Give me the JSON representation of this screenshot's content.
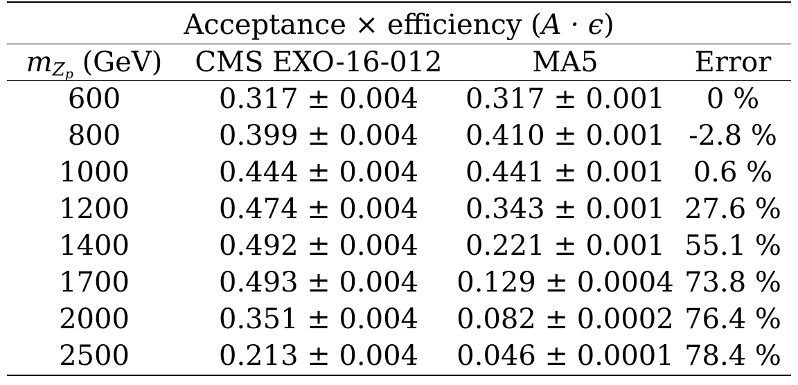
{
  "caption": {
    "prefix": "Acceptance × efficiency (",
    "symbol": "A · ϵ",
    "suffix": ")"
  },
  "header": {
    "mass_symbol": "m",
    "mass_sub": "Z",
    "mass_sub_sub": "p",
    "mass_unit": "(GeV)",
    "col_cms": "CMS EXO-16-012",
    "col_ma5": "MA5",
    "col_error": "Error"
  },
  "rows": [
    {
      "mass": "600",
      "cms": "0.317 ± 0.004",
      "ma5": "0.317 ± 0.001",
      "error": "0 %"
    },
    {
      "mass": "800",
      "cms": "0.399 ± 0.004",
      "ma5": "0.410 ± 0.001",
      "error": "-2.8 %"
    },
    {
      "mass": "1000",
      "cms": "0.444 ± 0.004",
      "ma5": "0.441 ± 0.001",
      "error": "0.6 %"
    },
    {
      "mass": "1200",
      "cms": "0.474 ± 0.004",
      "ma5": "0.343 ± 0.001",
      "error": "27.6 %"
    },
    {
      "mass": "1400",
      "cms": "0.492 ± 0.004",
      "ma5": "0.221 ± 0.001",
      "error": "55.1 %"
    },
    {
      "mass": "1700",
      "cms": "0.493 ± 0.004",
      "ma5": "0.129 ± 0.0004",
      "error": "73.8 %"
    },
    {
      "mass": "2000",
      "cms": "0.351 ± 0.004",
      "ma5": "0.082 ± 0.0002",
      "error": "76.4 %"
    },
    {
      "mass": "2500",
      "cms": "0.213 ± 0.004",
      "ma5": "0.046 ± 0.0001",
      "error": "78.4 %"
    }
  ]
}
